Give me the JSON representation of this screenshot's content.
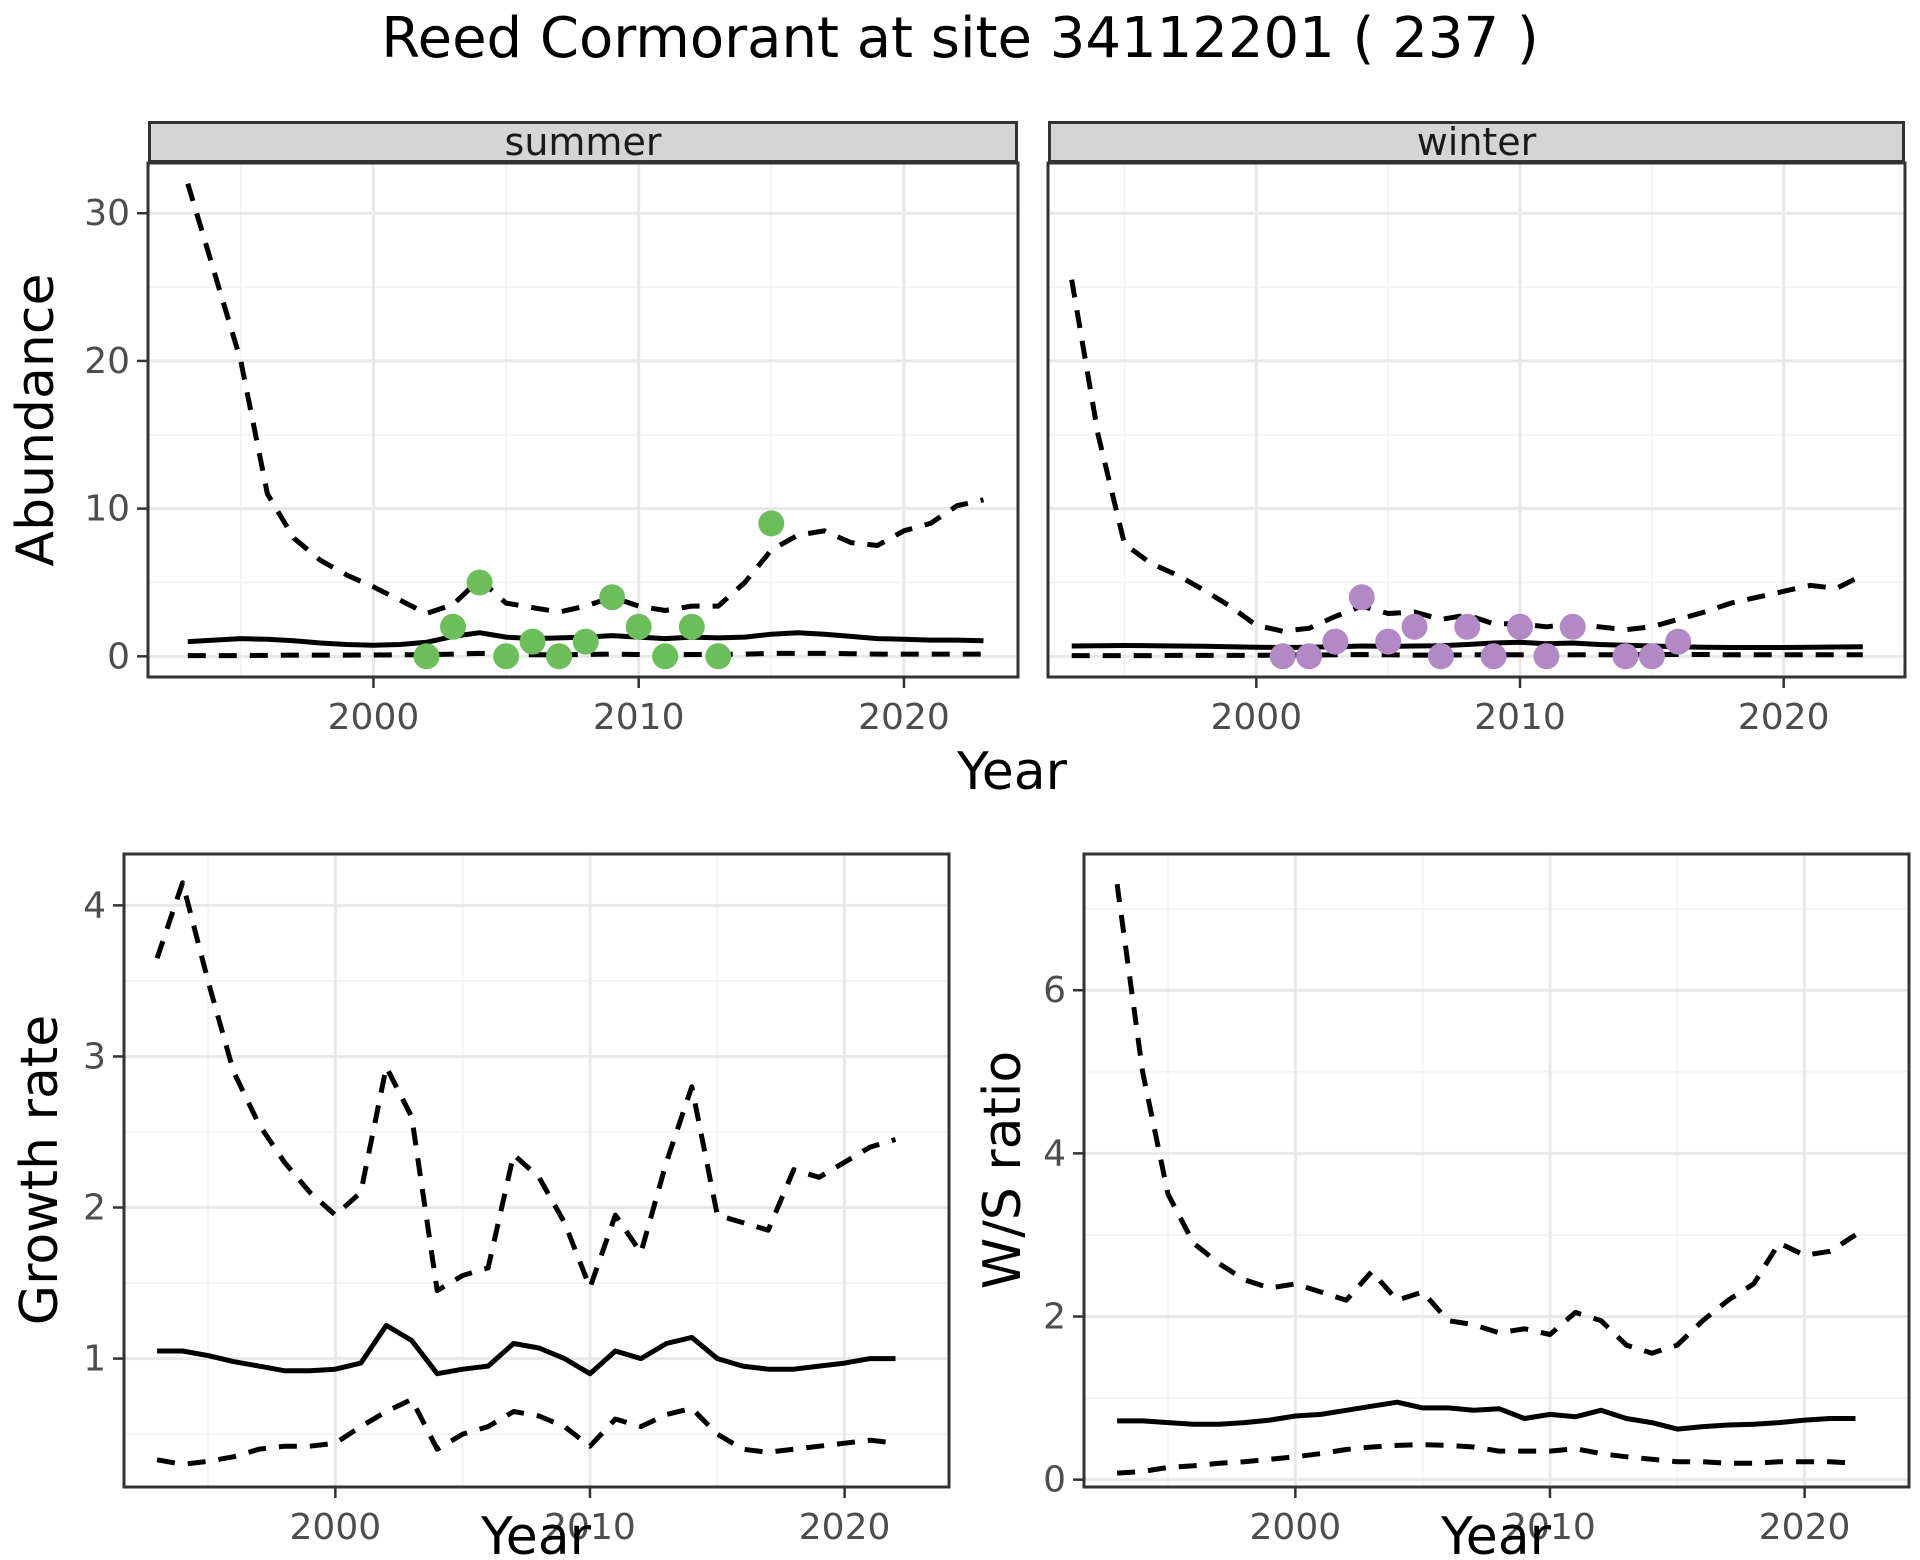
{
  "title": "Reed Cormorant at site 34112201 ( 237 )",
  "facets": [
    "summer",
    "winter"
  ],
  "axis_titles": {
    "abundance": "Abundance",
    "year_top": "Year",
    "growth_rate": "Growth rate",
    "ws_ratio": "W/S ratio",
    "year_bottom_left": "Year",
    "year_bottom_right": "Year"
  },
  "colors": {
    "summer_points": "#6CBE5B",
    "winter_points": "#B289C4",
    "line": "#000000",
    "grid_major": "#E8E8E8",
    "grid_minor": "#F3F3F3",
    "strip_bg": "#D5D5D5",
    "panel_border": "#333333",
    "tick_label": "#4D4D4D"
  },
  "chart_data": [
    {
      "id": "summer",
      "type": "line",
      "facet_label": "summer",
      "xlabel": "Year",
      "ylabel": "Abundance",
      "xlim": [
        1991.5,
        2024.3
      ],
      "ylim": [
        -1.4,
        33.4
      ],
      "x_ticks": [
        2000,
        2010,
        2020
      ],
      "x_minor": [
        1995,
        2005,
        2015
      ],
      "y_ticks": [
        0,
        10,
        20,
        30
      ],
      "y_minor": [
        5,
        15,
        25
      ],
      "show_y_axis": true,
      "x": [
        1993,
        1994,
        1995,
        1996,
        1997,
        1998,
        1999,
        2000,
        2001,
        2002,
        2003,
        2004,
        2005,
        2006,
        2007,
        2008,
        2009,
        2010,
        2011,
        2012,
        2013,
        2014,
        2015,
        2016,
        2017,
        2018,
        2019,
        2020,
        2021,
        2022,
        2023
      ],
      "series": [
        {
          "name": "upper-ci",
          "style": "dashed",
          "values": [
            32,
            26,
            20,
            11,
            8,
            6.5,
            5.5,
            4.7,
            3.8,
            2.9,
            3.5,
            5.2,
            3.6,
            3.3,
            3.0,
            3.4,
            4.0,
            3.4,
            3.1,
            3.4,
            3.4,
            5.0,
            7.2,
            8.2,
            8.5,
            7.7,
            7.5,
            8.5,
            9.0,
            10.2,
            10.6
          ]
        },
        {
          "name": "fit",
          "style": "solid",
          "values": [
            1.0,
            1.1,
            1.2,
            1.15,
            1.05,
            0.9,
            0.8,
            0.75,
            0.8,
            0.95,
            1.35,
            1.6,
            1.3,
            1.2,
            1.25,
            1.3,
            1.4,
            1.3,
            1.2,
            1.3,
            1.25,
            1.3,
            1.5,
            1.6,
            1.5,
            1.35,
            1.2,
            1.15,
            1.1,
            1.1,
            1.05
          ]
        },
        {
          "name": "lower-ci",
          "style": "dashed",
          "values": [
            0.05,
            0.05,
            0.05,
            0.06,
            0.08,
            0.08,
            0.08,
            0.09,
            0.1,
            0.1,
            0.15,
            0.2,
            0.15,
            0.1,
            0.1,
            0.12,
            0.15,
            0.12,
            0.1,
            0.12,
            0.12,
            0.15,
            0.2,
            0.2,
            0.2,
            0.18,
            0.15,
            0.15,
            0.15,
            0.15,
            0.15
          ]
        }
      ],
      "points": {
        "color_key": "summer_points",
        "xy": [
          [
            2002,
            0
          ],
          [
            2003,
            2
          ],
          [
            2004,
            5
          ],
          [
            2005,
            0
          ],
          [
            2006,
            1
          ],
          [
            2007,
            0
          ],
          [
            2008,
            1
          ],
          [
            2009,
            4
          ],
          [
            2010,
            2
          ],
          [
            2011,
            0
          ],
          [
            2012,
            2
          ],
          [
            2013,
            0
          ],
          [
            2015,
            9
          ]
        ]
      }
    },
    {
      "id": "winter",
      "type": "line",
      "facet_label": "winter",
      "xlabel": "Year",
      "ylabel": "Abundance",
      "xlim": [
        1992.1,
        2024.6
      ],
      "ylim": [
        -1.4,
        33.4
      ],
      "x_ticks": [
        2000,
        2010,
        2020
      ],
      "x_minor": [
        1995,
        2005,
        2015
      ],
      "y_ticks": [
        0,
        10,
        20,
        30
      ],
      "y_minor": [
        5,
        15,
        25
      ],
      "show_y_axis": false,
      "x": [
        1993,
        1994,
        1995,
        1996,
        1997,
        1998,
        1999,
        2000,
        2001,
        2002,
        2003,
        2004,
        2005,
        2006,
        2007,
        2008,
        2009,
        2010,
        2011,
        2012,
        2013,
        2014,
        2015,
        2016,
        2017,
        2018,
        2019,
        2020,
        2021,
        2022,
        2023
      ],
      "series": [
        {
          "name": "upper-ci",
          "style": "dashed",
          "values": [
            25.5,
            15,
            7.6,
            6.3,
            5.5,
            4.5,
            3.4,
            2.1,
            1.7,
            1.9,
            2.7,
            3.4,
            2.9,
            3.0,
            2.5,
            2.8,
            2.2,
            2.2,
            2.0,
            2.2,
            2.0,
            1.8,
            2.0,
            2.5,
            3.0,
            3.6,
            4.0,
            4.4,
            4.8,
            4.6,
            5.5
          ]
        },
        {
          "name": "fit",
          "style": "solid",
          "values": [
            0.7,
            0.72,
            0.73,
            0.72,
            0.7,
            0.68,
            0.65,
            0.62,
            0.6,
            0.62,
            0.65,
            0.7,
            0.68,
            0.7,
            0.72,
            0.8,
            0.9,
            0.95,
            0.85,
            0.9,
            0.8,
            0.75,
            0.7,
            0.65,
            0.62,
            0.6,
            0.6,
            0.6,
            0.62,
            0.63,
            0.65
          ]
        },
        {
          "name": "lower-ci",
          "style": "dashed",
          "values": [
            0.05,
            0.05,
            0.05,
            0.05,
            0.06,
            0.06,
            0.06,
            0.07,
            0.08,
            0.08,
            0.1,
            0.12,
            0.1,
            0.08,
            0.08,
            0.1,
            0.1,
            0.1,
            0.08,
            0.1,
            0.1,
            0.1,
            0.12,
            0.12,
            0.12,
            0.1,
            0.1,
            0.1,
            0.1,
            0.1,
            0.1
          ]
        }
      ],
      "points": {
        "color_key": "winter_points",
        "xy": [
          [
            2001,
            0
          ],
          [
            2002,
            0
          ],
          [
            2003,
            1
          ],
          [
            2004,
            4
          ],
          [
            2005,
            1
          ],
          [
            2006,
            2
          ],
          [
            2007,
            0
          ],
          [
            2008,
            2
          ],
          [
            2009,
            0
          ],
          [
            2010,
            2
          ],
          [
            2011,
            0
          ],
          [
            2012,
            2
          ],
          [
            2014,
            0
          ],
          [
            2015,
            0
          ],
          [
            2016,
            1
          ]
        ]
      }
    },
    {
      "id": "growth",
      "type": "line",
      "facet_label": "",
      "xlabel": "Year",
      "ylabel": "Growth rate",
      "xlim": [
        1991.7,
        2024.1
      ],
      "ylim": [
        0.15,
        4.34
      ],
      "x_ticks": [
        2000,
        2010,
        2020
      ],
      "x_minor": [
        1995,
        2005,
        2015
      ],
      "y_ticks": [
        1,
        2,
        3,
        4
      ],
      "y_minor": [
        0.5,
        1.5,
        2.5,
        3.5
      ],
      "show_y_axis": true,
      "x": [
        1993,
        1994,
        1995,
        1996,
        1997,
        1998,
        1999,
        2000,
        2001,
        2002,
        2003,
        2004,
        2005,
        2006,
        2007,
        2008,
        2009,
        2010,
        2011,
        2012,
        2013,
        2014,
        2015,
        2016,
        2017,
        2018,
        2019,
        2020,
        2021,
        2022
      ],
      "series": [
        {
          "name": "upper-ci",
          "style": "dashed",
          "values": [
            3.65,
            4.15,
            3.5,
            2.9,
            2.55,
            2.3,
            2.1,
            1.95,
            2.1,
            2.93,
            2.6,
            1.45,
            1.55,
            1.6,
            2.35,
            2.2,
            1.9,
            1.47,
            1.95,
            1.7,
            2.3,
            2.8,
            1.95,
            1.9,
            1.85,
            2.25,
            2.2,
            2.3,
            2.4,
            2.45
          ]
        },
        {
          "name": "fit",
          "style": "solid",
          "values": [
            1.05,
            1.05,
            1.02,
            0.98,
            0.95,
            0.92,
            0.92,
            0.93,
            0.97,
            1.22,
            1.12,
            0.9,
            0.93,
            0.95,
            1.1,
            1.07,
            1.0,
            0.9,
            1.05,
            1.0,
            1.1,
            1.14,
            1.0,
            0.95,
            0.93,
            0.93,
            0.95,
            0.97,
            1.0,
            1.0
          ]
        },
        {
          "name": "lower-ci",
          "style": "dashed",
          "values": [
            0.33,
            0.3,
            0.32,
            0.35,
            0.4,
            0.42,
            0.42,
            0.44,
            0.55,
            0.65,
            0.73,
            0.4,
            0.5,
            0.55,
            0.65,
            0.62,
            0.55,
            0.42,
            0.6,
            0.55,
            0.63,
            0.67,
            0.5,
            0.4,
            0.38,
            0.4,
            0.42,
            0.44,
            0.46,
            0.44
          ]
        }
      ],
      "points": null
    },
    {
      "id": "ws",
      "type": "line",
      "facet_label": "",
      "xlabel": "Year",
      "ylabel": "W/S ratio",
      "xlim": [
        1991.7,
        2024.1
      ],
      "ylim": [
        -0.09,
        7.67
      ],
      "x_ticks": [
        2000,
        2010,
        2020
      ],
      "x_minor": [
        1995,
        2005,
        2015
      ],
      "y_ticks": [
        0,
        2,
        4,
        6
      ],
      "y_minor": [
        1,
        3,
        5,
        7
      ],
      "show_y_axis": true,
      "x": [
        1993,
        1994,
        1995,
        1996,
        1997,
        1998,
        1999,
        2000,
        2001,
        2002,
        2003,
        2004,
        2005,
        2006,
        2007,
        2008,
        2009,
        2010,
        2011,
        2012,
        2013,
        2014,
        2015,
        2016,
        2017,
        2018,
        2019,
        2020,
        2021,
        2022
      ],
      "series": [
        {
          "name": "upper-ci",
          "style": "dashed",
          "values": [
            7.3,
            5.0,
            3.5,
            2.9,
            2.65,
            2.45,
            2.35,
            2.4,
            2.3,
            2.2,
            2.55,
            2.2,
            2.3,
            1.95,
            1.9,
            1.8,
            1.85,
            1.78,
            2.05,
            1.95,
            1.65,
            1.55,
            1.65,
            1.95,
            2.2,
            2.4,
            2.9,
            2.75,
            2.8,
            3.0
          ]
        },
        {
          "name": "fit",
          "style": "solid",
          "values": [
            0.72,
            0.72,
            0.7,
            0.68,
            0.68,
            0.7,
            0.73,
            0.78,
            0.8,
            0.85,
            0.9,
            0.95,
            0.88,
            0.88,
            0.85,
            0.87,
            0.75,
            0.8,
            0.77,
            0.85,
            0.75,
            0.7,
            0.62,
            0.65,
            0.67,
            0.68,
            0.7,
            0.73,
            0.75,
            0.75
          ]
        },
        {
          "name": "lower-ci",
          "style": "dashed",
          "values": [
            0.08,
            0.1,
            0.15,
            0.17,
            0.2,
            0.22,
            0.25,
            0.28,
            0.32,
            0.37,
            0.4,
            0.42,
            0.43,
            0.42,
            0.4,
            0.35,
            0.35,
            0.35,
            0.38,
            0.32,
            0.28,
            0.25,
            0.22,
            0.22,
            0.2,
            0.2,
            0.22,
            0.22,
            0.22,
            0.2
          ]
        }
      ],
      "points": null
    }
  ]
}
